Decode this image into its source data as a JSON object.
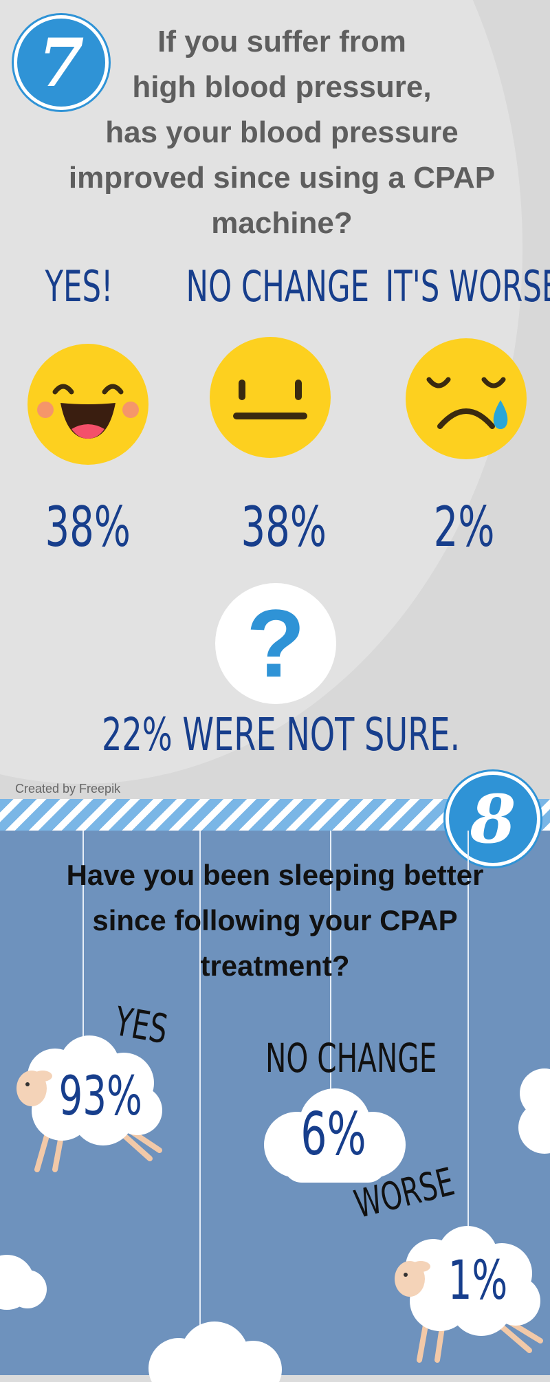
{
  "section7": {
    "badge_number": "7",
    "question_lines": [
      "If you suffer from",
      "high blood pressure,",
      "has your blood pressure",
      "improved since using a CPAP",
      "machine?"
    ],
    "answers": [
      {
        "label": "YES!",
        "percent": "38%"
      },
      {
        "label": "NO CHANGE",
        "percent": "38%"
      },
      {
        "label": "IT'S WORSE",
        "percent": "2%"
      }
    ],
    "unsure_icon": "?",
    "unsure_text": "22% WERE NOT SURE.",
    "credit": "Created by Freepik"
  },
  "section8": {
    "badge_number": "8",
    "question_lines": [
      "Have you been sleeping better",
      "since following your CPAP",
      "treatment?"
    ],
    "answers": [
      {
        "label": "YES",
        "percent": "93%"
      },
      {
        "label": "NO CHANGE",
        "percent": "6%"
      },
      {
        "label": "WORSE",
        "percent": "1%"
      }
    ]
  },
  "colors": {
    "accent_blue": "#2f93d6",
    "text_navy": "#173e8c",
    "emoji_yellow": "#fdd01f",
    "section8_bg": "#6e92bd"
  },
  "icons": [
    "happy-face-icon",
    "neutral-face-icon",
    "sad-face-icon",
    "question-mark-icon",
    "sheep-icon",
    "cloud-icon"
  ]
}
